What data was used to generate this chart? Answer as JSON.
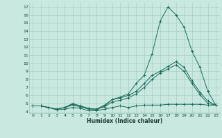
{
  "xlabel": "Humidex (Indice chaleur)",
  "background_color": "#c8e8e0",
  "grid_color": "#a0c8c0",
  "line_color": "#1a6b5a",
  "xlim": [
    -0.5,
    23.5
  ],
  "ylim": [
    3.8,
    17.5
  ],
  "xticks": [
    0,
    1,
    2,
    3,
    4,
    5,
    6,
    7,
    8,
    9,
    10,
    11,
    12,
    13,
    14,
    15,
    16,
    17,
    18,
    19,
    20,
    21,
    22,
    23
  ],
  "yticks": [
    4,
    5,
    6,
    7,
    8,
    9,
    10,
    11,
    12,
    13,
    14,
    15,
    16,
    17
  ],
  "series": [
    {
      "x": [
        0,
        1,
        2,
        3,
        4,
        5,
        6,
        7,
        8,
        9,
        10,
        11,
        12,
        13,
        14,
        15,
        16,
        17,
        18,
        19,
        20,
        21,
        22,
        23
      ],
      "y": [
        4.7,
        4.7,
        4.5,
        4.2,
        4.3,
        4.5,
        4.4,
        4.1,
        4.1,
        4.3,
        4.5,
        4.7,
        4.5,
        4.7,
        4.8,
        4.8,
        4.8,
        4.9,
        4.9,
        4.9,
        4.9,
        4.9,
        4.8,
        4.8
      ]
    },
    {
      "x": [
        0,
        1,
        2,
        3,
        4,
        5,
        6,
        7,
        8,
        9,
        10,
        11,
        12,
        13,
        14,
        15,
        16,
        17,
        18,
        19,
        20,
        21,
        22,
        23
      ],
      "y": [
        4.7,
        4.7,
        4.5,
        4.3,
        4.5,
        4.8,
        4.6,
        4.4,
        4.2,
        4.7,
        5.5,
        5.8,
        6.2,
        7.5,
        8.5,
        11.2,
        15.2,
        17.0,
        16.0,
        14.5,
        11.5,
        9.5,
        6.5,
        4.8
      ]
    },
    {
      "x": [
        0,
        1,
        2,
        3,
        4,
        5,
        6,
        7,
        8,
        9,
        10,
        11,
        12,
        13,
        14,
        15,
        16,
        17,
        18,
        19,
        20,
        21,
        22,
        23
      ],
      "y": [
        4.7,
        4.7,
        4.5,
        4.3,
        4.5,
        5.0,
        4.7,
        4.4,
        4.3,
        4.8,
        5.5,
        5.7,
        6.0,
        6.5,
        7.5,
        8.5,
        9.0,
        9.6,
        10.2,
        9.5,
        7.8,
        6.4,
        5.3,
        4.8
      ]
    },
    {
      "x": [
        0,
        1,
        2,
        3,
        4,
        5,
        6,
        7,
        8,
        9,
        10,
        11,
        12,
        13,
        14,
        15,
        16,
        17,
        18,
        19,
        20,
        21,
        22,
        23
      ],
      "y": [
        4.7,
        4.7,
        4.5,
        4.3,
        4.5,
        4.9,
        4.6,
        4.3,
        4.3,
        4.6,
        5.2,
        5.4,
        5.7,
        6.2,
        7.0,
        8.0,
        8.8,
        9.3,
        9.8,
        9.0,
        7.5,
        6.1,
        5.0,
        4.8
      ]
    }
  ]
}
